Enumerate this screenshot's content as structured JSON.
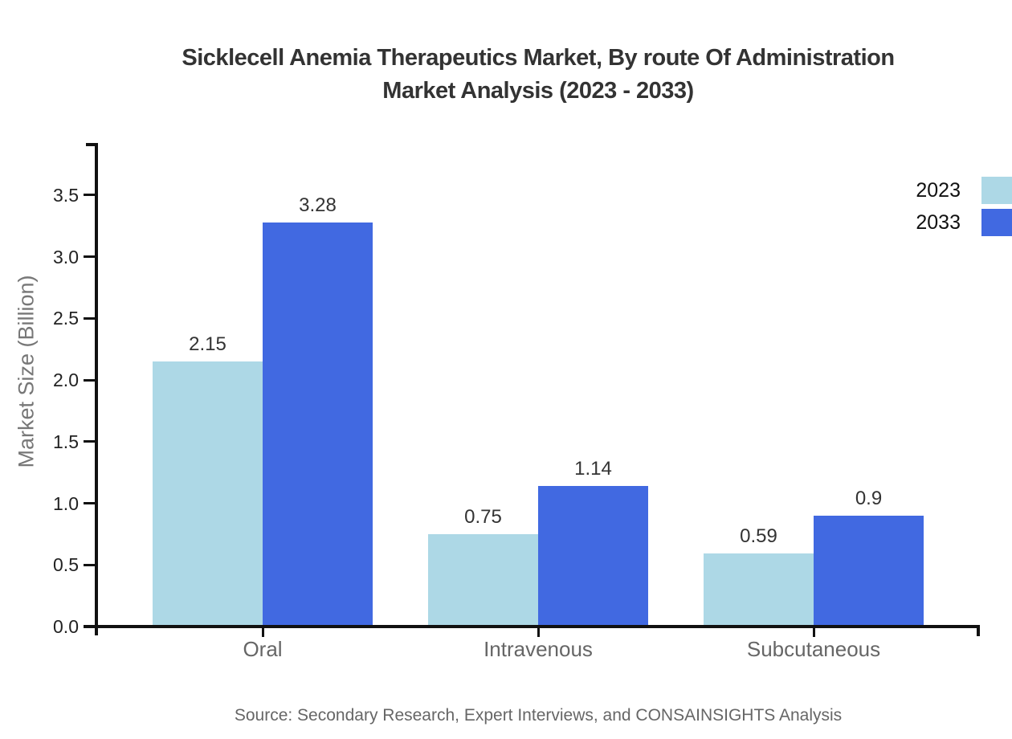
{
  "title": {
    "line1": "Sicklecell Anemia Therapeutics Market, By route Of Administration",
    "line2": "Market Analysis (2023 - 2033)"
  },
  "source": "Source: Secondary Research, Expert Interviews, and CONSAINSIGHTS Analysis",
  "chart_data": {
    "type": "bar",
    "title": "Sicklecell Anemia Therapeutics Market, By route Of Administration Market Analysis (2023 - 2033)",
    "categories": [
      "Oral",
      "Intravenous",
      "Subcutaneous"
    ],
    "series": [
      {
        "name": "2023",
        "color": "#ADD8E6",
        "values": [
          2.15,
          0.75,
          0.59
        ]
      },
      {
        "name": "2033",
        "color": "#4169E1",
        "values": [
          3.28,
          1.14,
          0.9
        ]
      }
    ],
    "xlabel": "",
    "ylabel": "Market Size (Billion)",
    "ylim": [
      0,
      3.9
    ],
    "yticks": [
      0.0,
      0.5,
      1.0,
      1.5,
      2.0,
      2.5,
      3.0,
      3.5
    ],
    "grid": false,
    "legend_position": "top-right",
    "value_labels_shown": true,
    "colors": {
      "background": "#FFFFFF",
      "axis": "#111111",
      "title_text": "#333333",
      "tick_text": "#222222",
      "category_text": "#666666",
      "axis_title_text": "#777777",
      "value_label_text": "#333333",
      "source_text": "#666666"
    }
  }
}
